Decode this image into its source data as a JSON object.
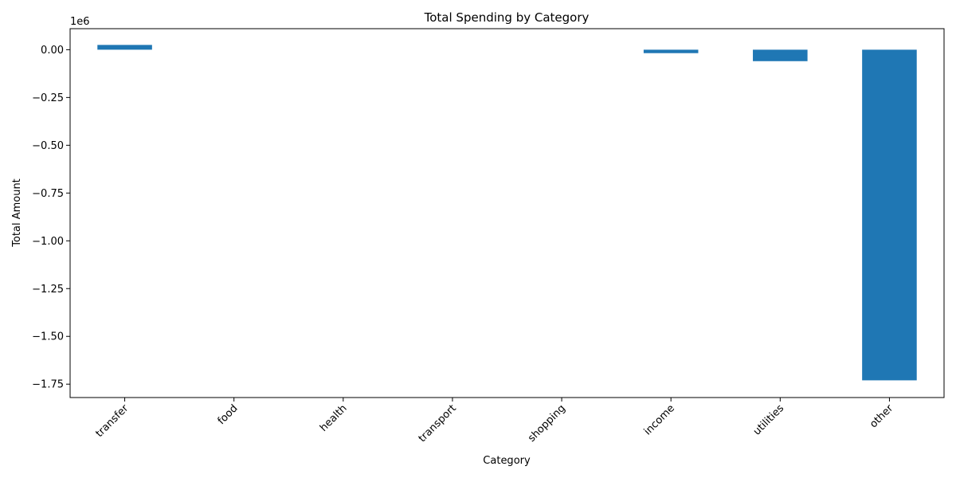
{
  "chart_data": {
    "type": "bar",
    "title": "Total Spending by Category",
    "xlabel": "Category",
    "ylabel": "Total Amount",
    "scale_note": "1e6",
    "categories": [
      "transfer",
      "food",
      "health",
      "transport",
      "shopping",
      "income",
      "utilities",
      "other"
    ],
    "values": [
      25000,
      0,
      0,
      0,
      0,
      -18000,
      -60000,
      -1730000
    ],
    "ylim": [
      -1820000,
      110000
    ],
    "yticks": [
      0,
      -250000,
      -500000,
      -750000,
      -1000000,
      -1250000,
      -1500000,
      -1750000
    ],
    "ytick_labels": [
      "0.00",
      "−0.25",
      "−0.50",
      "−0.75",
      "−1.00",
      "−1.25",
      "−1.50",
      "−1.75"
    ],
    "bar_color": "#1f77b4",
    "grid": false,
    "legend": "none"
  }
}
